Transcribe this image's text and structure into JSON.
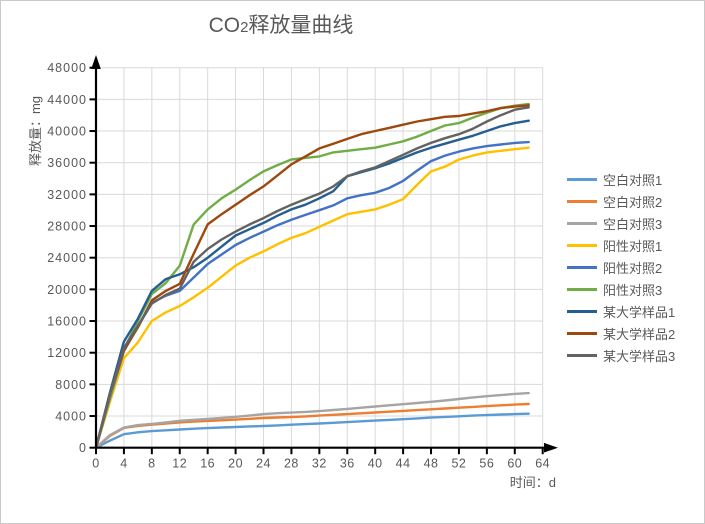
{
  "ui": {
    "title_prefix": "CO",
    "title_sub": "2",
    "title_suffix": "释放量曲线",
    "y_axis_title": "释放量：mg",
    "x_axis_title": "时间：d"
  },
  "chart_data": {
    "type": "line",
    "title": "CO2释放量曲线",
    "xlabel": "时间：d",
    "ylabel": "释放量：mg",
    "xlim": [
      0,
      64
    ],
    "ylim": [
      0,
      48000
    ],
    "x_ticks": [
      0,
      4,
      8,
      12,
      16,
      20,
      24,
      28,
      32,
      36,
      40,
      44,
      48,
      52,
      56,
      60,
      64
    ],
    "y_ticks": [
      0,
      4000,
      8000,
      12000,
      16000,
      20000,
      24000,
      28000,
      32000,
      36000,
      40000,
      44000,
      48000
    ],
    "grid": true,
    "legend_position": "right",
    "x": [
      0,
      2,
      4,
      6,
      8,
      10,
      12,
      14,
      16,
      18,
      20,
      22,
      24,
      26,
      28,
      30,
      32,
      34,
      36,
      38,
      40,
      42,
      44,
      46,
      48,
      50,
      52,
      54,
      56,
      58,
      60,
      62
    ],
    "series": [
      {
        "name": "空白对照1",
        "color": "#5B9BD5",
        "values": [
          0,
          900,
          1700,
          1950,
          2100,
          2200,
          2300,
          2400,
          2480,
          2550,
          2620,
          2690,
          2740,
          2820,
          2900,
          2980,
          3060,
          3150,
          3240,
          3330,
          3420,
          3510,
          3600,
          3700,
          3800,
          3890,
          3970,
          4050,
          4120,
          4190,
          4250,
          4300
        ]
      },
      {
        "name": "空白对照2",
        "color": "#ED7D31",
        "values": [
          0,
          1500,
          2500,
          2750,
          2900,
          3050,
          3200,
          3300,
          3380,
          3460,
          3550,
          3650,
          3750,
          3810,
          3880,
          3950,
          4050,
          4150,
          4250,
          4350,
          4450,
          4550,
          4650,
          4750,
          4850,
          4950,
          5050,
          5150,
          5250,
          5350,
          5450,
          5520
        ]
      },
      {
        "name": "空白对照3",
        "color": "#A5A5A5",
        "values": [
          0,
          1600,
          2550,
          2850,
          3000,
          3200,
          3400,
          3520,
          3620,
          3760,
          3900,
          4060,
          4250,
          4360,
          4430,
          4520,
          4620,
          4760,
          4900,
          5050,
          5200,
          5350,
          5500,
          5650,
          5800,
          5960,
          6150,
          6350,
          6500,
          6650,
          6800,
          6900
        ]
      },
      {
        "name": "阳性对照1",
        "color": "#FFC000",
        "values": [
          0,
          5800,
          11300,
          13300,
          16000,
          17100,
          17900,
          19000,
          20200,
          21600,
          23000,
          24000,
          24800,
          25700,
          26500,
          27100,
          27900,
          28700,
          29500,
          29800,
          30100,
          30700,
          31400,
          33200,
          34900,
          35500,
          36400,
          36900,
          37300,
          37500,
          37700,
          37900
        ]
      },
      {
        "name": "阳性对照2",
        "color": "#4472C4",
        "values": [
          0,
          6300,
          12200,
          15300,
          18300,
          19200,
          19800,
          21500,
          23200,
          24400,
          25600,
          26500,
          27300,
          28100,
          28800,
          29400,
          30000,
          30600,
          31500,
          31900,
          32200,
          32800,
          33700,
          35000,
          36200,
          36900,
          37400,
          37800,
          38100,
          38300,
          38500,
          38600
        ]
      },
      {
        "name": "阳性对照3",
        "color": "#70AD47",
        "values": [
          0,
          6500,
          12400,
          16000,
          19400,
          20800,
          23000,
          28200,
          30100,
          31500,
          32600,
          33800,
          34900,
          35700,
          36400,
          36600,
          36800,
          37300,
          37500,
          37700,
          37900,
          38300,
          38700,
          39300,
          40000,
          40700,
          41000,
          41700,
          42300,
          42900,
          43200,
          43400
        ]
      },
      {
        "name": "某大学样品1",
        "color": "#255E91",
        "values": [
          0,
          7000,
          13400,
          16300,
          19800,
          21300,
          21900,
          22800,
          24000,
          25400,
          26800,
          27600,
          28400,
          29300,
          30100,
          30700,
          31500,
          32400,
          34300,
          34800,
          35300,
          35900,
          36600,
          37300,
          37900,
          38400,
          38900,
          39400,
          40000,
          40600,
          41000,
          41300
        ]
      },
      {
        "name": "某大学样品2",
        "color": "#9E480E",
        "values": [
          0,
          6800,
          12300,
          15200,
          18600,
          19800,
          20700,
          24500,
          28200,
          29500,
          30700,
          31900,
          33000,
          34400,
          35800,
          36800,
          37800,
          38400,
          39000,
          39600,
          40000,
          40400,
          40800,
          41200,
          41500,
          41800,
          41900,
          42200,
          42500,
          42900,
          43100,
          43250
        ]
      },
      {
        "name": "某大学样品3",
        "color": "#636363",
        "values": [
          0,
          6800,
          12600,
          15400,
          18200,
          19300,
          20100,
          23500,
          25100,
          26300,
          27300,
          28200,
          29000,
          29900,
          30700,
          31400,
          32100,
          33000,
          34300,
          34900,
          35400,
          36200,
          37000,
          37800,
          38500,
          39100,
          39600,
          40300,
          41200,
          42000,
          42700,
          43000
        ]
      }
    ]
  },
  "style": {
    "grid_color": "#D9D9D9",
    "axis_color": "#000000",
    "tick_label_color": "#595959",
    "title_color": "#595959"
  }
}
